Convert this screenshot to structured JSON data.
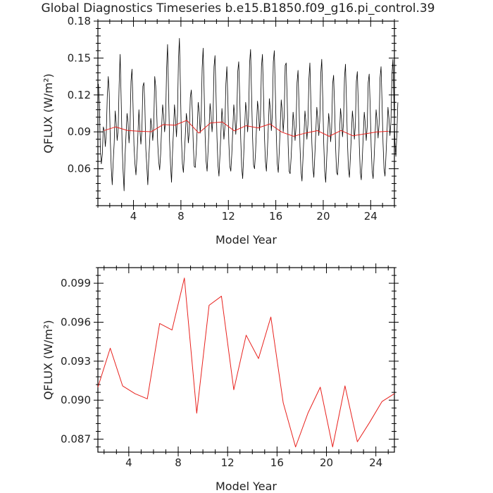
{
  "page_title": "Global Diagnostics Timeseries b.e15.B1850.f09_g16.pi_control.39",
  "colors": {
    "monthly_line": "#000000",
    "annual_line": "#e8211d",
    "axis": "#000000"
  },
  "chart_data": [
    {
      "type": "line",
      "xlabel": "Model Year",
      "ylabel": "QFLUX (W/m²)",
      "xlim": [
        1,
        26
      ],
      "ylim": [
        0.03,
        0.18
      ],
      "xticks": [
        4,
        8,
        12,
        16,
        20,
        24
      ],
      "yticks": [
        0.06,
        0.09,
        0.12,
        0.15,
        0.18
      ],
      "ytick_labels": [
        "0.06",
        "0.09",
        "0.12",
        "0.15",
        "0.18"
      ],
      "grid": false,
      "series": [
        {
          "color": "#000000",
          "description_values_per": "monthly",
          "x_start": 1.0417,
          "x_step": 0.08333,
          "values": [
            0.129,
            0.113,
            0.075,
            0.064,
            0.072,
            0.094,
            0.091,
            0.078,
            0.089,
            0.119,
            0.135,
            0.121,
            0.085,
            0.061,
            0.047,
            0.066,
            0.081,
            0.107,
            0.097,
            0.083,
            0.092,
            0.128,
            0.153,
            0.118,
            0.08,
            0.058,
            0.042,
            0.071,
            0.088,
            0.105,
            0.098,
            0.081,
            0.094,
            0.131,
            0.141,
            0.113,
            0.079,
            0.064,
            0.055,
            0.069,
            0.088,
            0.108,
            0.092,
            0.08,
            0.091,
            0.127,
            0.13,
            0.112,
            0.076,
            0.062,
            0.047,
            0.068,
            0.084,
            0.101,
            0.095,
            0.083,
            0.094,
            0.135,
            0.127,
            0.106,
            0.081,
            0.066,
            0.059,
            0.072,
            0.094,
            0.112,
            0.104,
            0.09,
            0.099,
            0.141,
            0.161,
            0.122,
            0.083,
            0.063,
            0.049,
            0.073,
            0.091,
            0.112,
            0.101,
            0.086,
            0.103,
            0.148,
            0.166,
            0.127,
            0.085,
            0.064,
            0.057,
            0.072,
            0.088,
            0.105,
            0.097,
            0.081,
            0.09,
            0.118,
            0.124,
            0.108,
            0.08,
            0.062,
            0.061,
            0.074,
            0.093,
            0.114,
            0.106,
            0.089,
            0.101,
            0.142,
            0.158,
            0.123,
            0.087,
            0.066,
            0.058,
            0.075,
            0.094,
            0.113,
            0.104,
            0.09,
            0.101,
            0.143,
            0.152,
            0.121,
            0.085,
            0.063,
            0.054,
            0.071,
            0.09,
            0.109,
            0.098,
            0.084,
            0.094,
            0.129,
            0.143,
            0.116,
            0.081,
            0.062,
            0.058,
            0.072,
            0.092,
            0.112,
            0.103,
            0.088,
            0.1,
            0.139,
            0.147,
            0.119,
            0.085,
            0.061,
            0.052,
            0.07,
            0.093,
            0.114,
            0.106,
            0.09,
            0.103,
            0.146,
            0.157,
            0.12,
            0.086,
            0.063,
            0.06,
            0.073,
            0.094,
            0.115,
            0.107,
            0.091,
            0.102,
            0.143,
            0.153,
            0.122,
            0.087,
            0.066,
            0.058,
            0.075,
            0.095,
            0.117,
            0.108,
            0.091,
            0.104,
            0.147,
            0.156,
            0.124,
            0.088,
            0.064,
            0.057,
            0.074,
            0.095,
            0.116,
            0.107,
            0.09,
            0.103,
            0.144,
            0.146,
            0.117,
            0.08,
            0.058,
            0.056,
            0.069,
            0.087,
            0.106,
            0.097,
            0.083,
            0.094,
            0.13,
            0.14,
            0.112,
            0.078,
            0.058,
            0.05,
            0.068,
            0.087,
            0.107,
            0.098,
            0.084,
            0.096,
            0.133,
            0.146,
            0.114,
            0.081,
            0.061,
            0.053,
            0.071,
            0.09,
            0.11,
            0.101,
            0.087,
            0.099,
            0.137,
            0.149,
            0.118,
            0.081,
            0.058,
            0.049,
            0.068,
            0.086,
            0.105,
            0.096,
            0.082,
            0.093,
            0.129,
            0.136,
            0.11,
            0.078,
            0.057,
            0.055,
            0.069,
            0.089,
            0.109,
            0.1,
            0.086,
            0.097,
            0.134,
            0.145,
            0.115,
            0.082,
            0.06,
            0.053,
            0.07,
            0.088,
            0.107,
            0.098,
            0.084,
            0.095,
            0.131,
            0.139,
            0.112,
            0.079,
            0.057,
            0.051,
            0.068,
            0.087,
            0.106,
            0.097,
            0.083,
            0.094,
            0.13,
            0.137,
            0.111,
            0.078,
            0.058,
            0.052,
            0.069,
            0.088,
            0.108,
            0.099,
            0.085,
            0.096,
            0.134,
            0.143,
            0.114,
            0.081,
            0.06,
            0.054,
            0.071,
            0.09,
            0.11,
            0.101,
            0.087,
            0.098,
            0.136,
            0.149,
            0.116,
            0.082,
            0.07,
            0.088,
            0.114
          ]
        },
        {
          "color": "#e8211d",
          "x": [
            1.5,
            2.5,
            3.5,
            4.5,
            5.5,
            6.5,
            7.5,
            8.5,
            9.5,
            10.5,
            11.5,
            12.5,
            13.5,
            14.5,
            15.5,
            16.5,
            17.5,
            18.5,
            19.5,
            20.5,
            21.5,
            22.5,
            23.5,
            24.5,
            25.5
          ],
          "values": [
            0.091,
            0.094,
            0.0911,
            0.0905,
            0.0901,
            0.0959,
            0.0954,
            0.0994,
            0.089,
            0.0973,
            0.098,
            0.0908,
            0.095,
            0.0932,
            0.0964,
            0.0898,
            0.0864,
            0.089,
            0.091,
            0.0864,
            0.0911,
            0.0868,
            0.0883,
            0.0899,
            0.0905
          ]
        }
      ]
    },
    {
      "type": "line",
      "xlabel": "Model Year",
      "ylabel": "QFLUX (W/m²)",
      "xlim": [
        1.5,
        25.5
      ],
      "ylim": [
        0.086,
        0.1002
      ],
      "xticks": [
        4,
        8,
        12,
        16,
        20,
        24
      ],
      "yticks": [
        0.087,
        0.09,
        0.093,
        0.096,
        0.099
      ],
      "ytick_labels": [
        "0.087",
        "0.090",
        "0.093",
        "0.096",
        "0.099"
      ],
      "grid": false,
      "series": [
        {
          "color": "#e8211d",
          "x": [
            1.5,
            2.5,
            3.5,
            4.5,
            5.5,
            6.5,
            7.5,
            8.5,
            9.5,
            10.5,
            11.5,
            12.5,
            13.5,
            14.5,
            15.5,
            16.5,
            17.5,
            18.5,
            19.5,
            20.5,
            21.5,
            22.5,
            23.5,
            24.5,
            25.5
          ],
          "values": [
            0.091,
            0.094,
            0.0911,
            0.0905,
            0.0901,
            0.0959,
            0.0954,
            0.0994,
            0.089,
            0.0973,
            0.098,
            0.0908,
            0.095,
            0.0932,
            0.0964,
            0.0898,
            0.0864,
            0.089,
            0.091,
            0.0864,
            0.0911,
            0.0868,
            0.0883,
            0.0899,
            0.0905
          ]
        }
      ]
    }
  ]
}
